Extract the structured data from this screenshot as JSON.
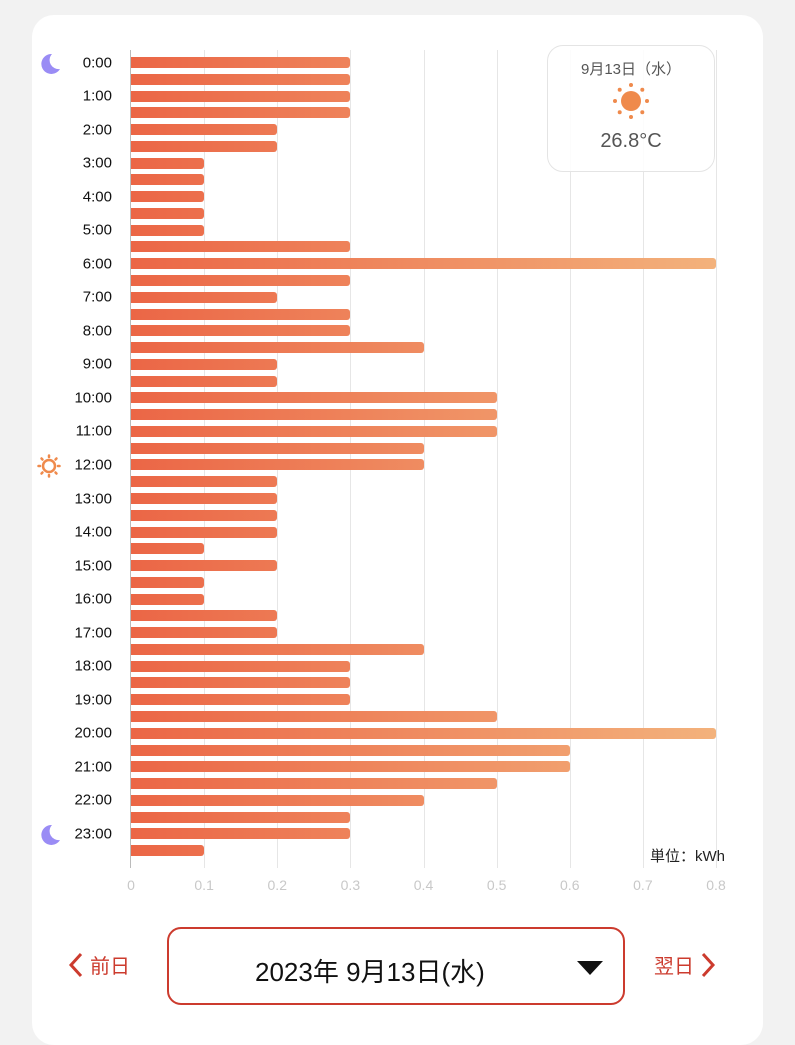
{
  "weather": {
    "date": "9月13日（水）",
    "temperature": "26.8°C",
    "icon": "sun-icon"
  },
  "chart_data": {
    "type": "bar",
    "orientation": "horizontal",
    "title": "",
    "unit_label": "単位：kWh",
    "xlabel": "kWh",
    "xlim": [
      0,
      0.8
    ],
    "x_ticks": [
      "0",
      "0.1",
      "0.2",
      "0.3",
      "0.4",
      "0.5",
      "0.6",
      "0.7",
      "0.8"
    ],
    "hour_labels": [
      "0:00",
      "1:00",
      "2:00",
      "3:00",
      "4:00",
      "5:00",
      "6:00",
      "7:00",
      "8:00",
      "9:00",
      "10:00",
      "11:00",
      "12:00",
      "13:00",
      "14:00",
      "15:00",
      "16:00",
      "17:00",
      "18:00",
      "19:00",
      "20:00",
      "21:00",
      "22:00",
      "23:00"
    ],
    "interval": "30min",
    "values": [
      0.3,
      0.3,
      0.3,
      0.3,
      0.2,
      0.2,
      0.1,
      0.1,
      0.1,
      0.1,
      0.1,
      0.3,
      0.8,
      0.3,
      0.2,
      0.3,
      0.3,
      0.4,
      0.2,
      0.2,
      0.5,
      0.5,
      0.5,
      0.4,
      0.4,
      0.2,
      0.2,
      0.2,
      0.2,
      0.1,
      0.2,
      0.1,
      0.1,
      0.2,
      0.2,
      0.4,
      0.3,
      0.3,
      0.3,
      0.5,
      0.8,
      0.6,
      0.6,
      0.5,
      0.4,
      0.3,
      0.3,
      0.1
    ],
    "markers": {
      "0:00": "moon-icon",
      "12:00": "sun-icon",
      "23:00": "moon-icon"
    },
    "colors": {
      "bar_start": "#eb6646",
      "bar_end": "#f3b27c"
    }
  },
  "nav": {
    "prev": "前日",
    "next": "翌日",
    "date": "2023年 9月13日(水)"
  }
}
